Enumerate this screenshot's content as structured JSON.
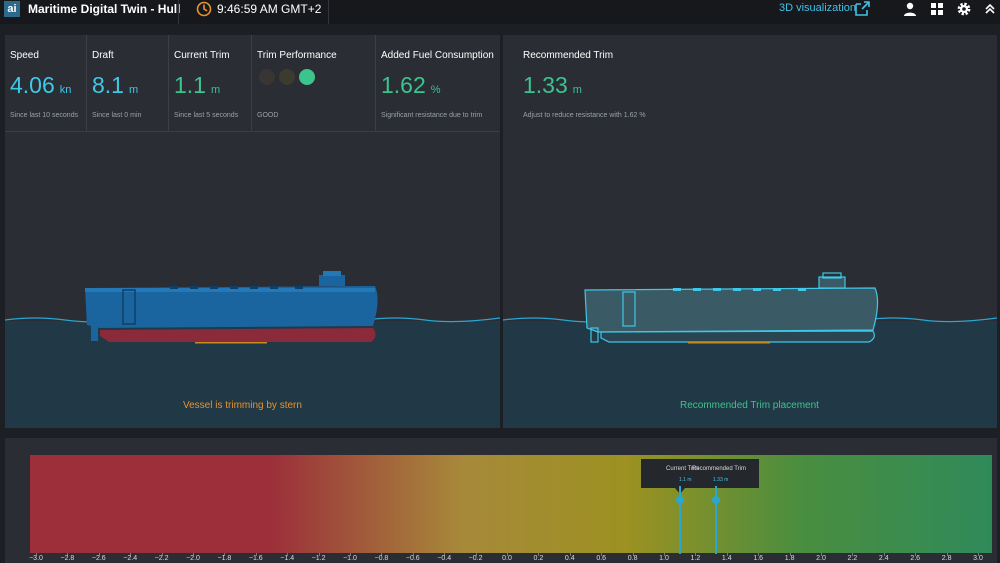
{
  "header": {
    "logo_text": "ai",
    "title": "Maritime Digital Twin - Hull",
    "clock": "9:46:59 AM GMT+2",
    "viz_link": "3D visualization"
  },
  "metrics": [
    {
      "label": "Speed",
      "value": "4.06",
      "unit": "kn",
      "sub": "Since last 10 seconds"
    },
    {
      "label": "Draft",
      "value": "8.1",
      "unit": "m",
      "sub": "Since last 0 min"
    },
    {
      "label": "Current Trim",
      "value": "1.1",
      "unit": "m",
      "sub": "Since last 5 seconds"
    },
    {
      "label": "Trim Performance",
      "sub": "GOOD",
      "dot_colors": [
        "#3a3535",
        "#3d3b2e",
        "#3cc48d"
      ]
    },
    {
      "label": "Added Fuel Consumption",
      "value": "1.62",
      "unit": "%",
      "sub": "Significant resistance due to trim"
    }
  ],
  "recommended": {
    "label": "Recommended Trim",
    "value": "1.33",
    "unit": "m",
    "sub": "Adjust to reduce resistance with 1.62 %"
  },
  "captions": {
    "left": "Vessel is trimming by stern",
    "right": "Recommended Trim placement"
  },
  "colors": {
    "accent_cyan": "#3fc8e8",
    "good_green": "#3cc48d",
    "warning_orange": "#e8922a",
    "hull_blue": "#1a64a0",
    "hull_red": "#8a2a3a"
  },
  "trim_scale": {
    "ticks": [
      "−3.0",
      "−2.8",
      "−2.6",
      "−2.4",
      "−2.2",
      "−2.0",
      "−1.8",
      "−1.6",
      "−1.4",
      "−1.2",
      "−1.0",
      "−0.8",
      "−0.6",
      "−0.4",
      "−0.2",
      "0.0",
      "0.2",
      "0.4",
      "0.6",
      "0.8",
      "1.0",
      "1.2",
      "1.4",
      "1.6",
      "1.8",
      "2.0",
      "2.2",
      "2.4",
      "2.6",
      "2.8",
      "3.0"
    ],
    "current": {
      "label": "Current Trim",
      "display": "1.1 m",
      "value": 1.1
    },
    "recommended": {
      "label": "Recommended Trim",
      "display": "1.33 m",
      "value": 1.33
    }
  },
  "icons": {
    "clock": "clock-icon",
    "external": "external-link-icon",
    "user": "user-icon",
    "apps": "apps-grid-icon",
    "settings": "gear-icon",
    "collapse": "chevron-double-up-icon"
  }
}
